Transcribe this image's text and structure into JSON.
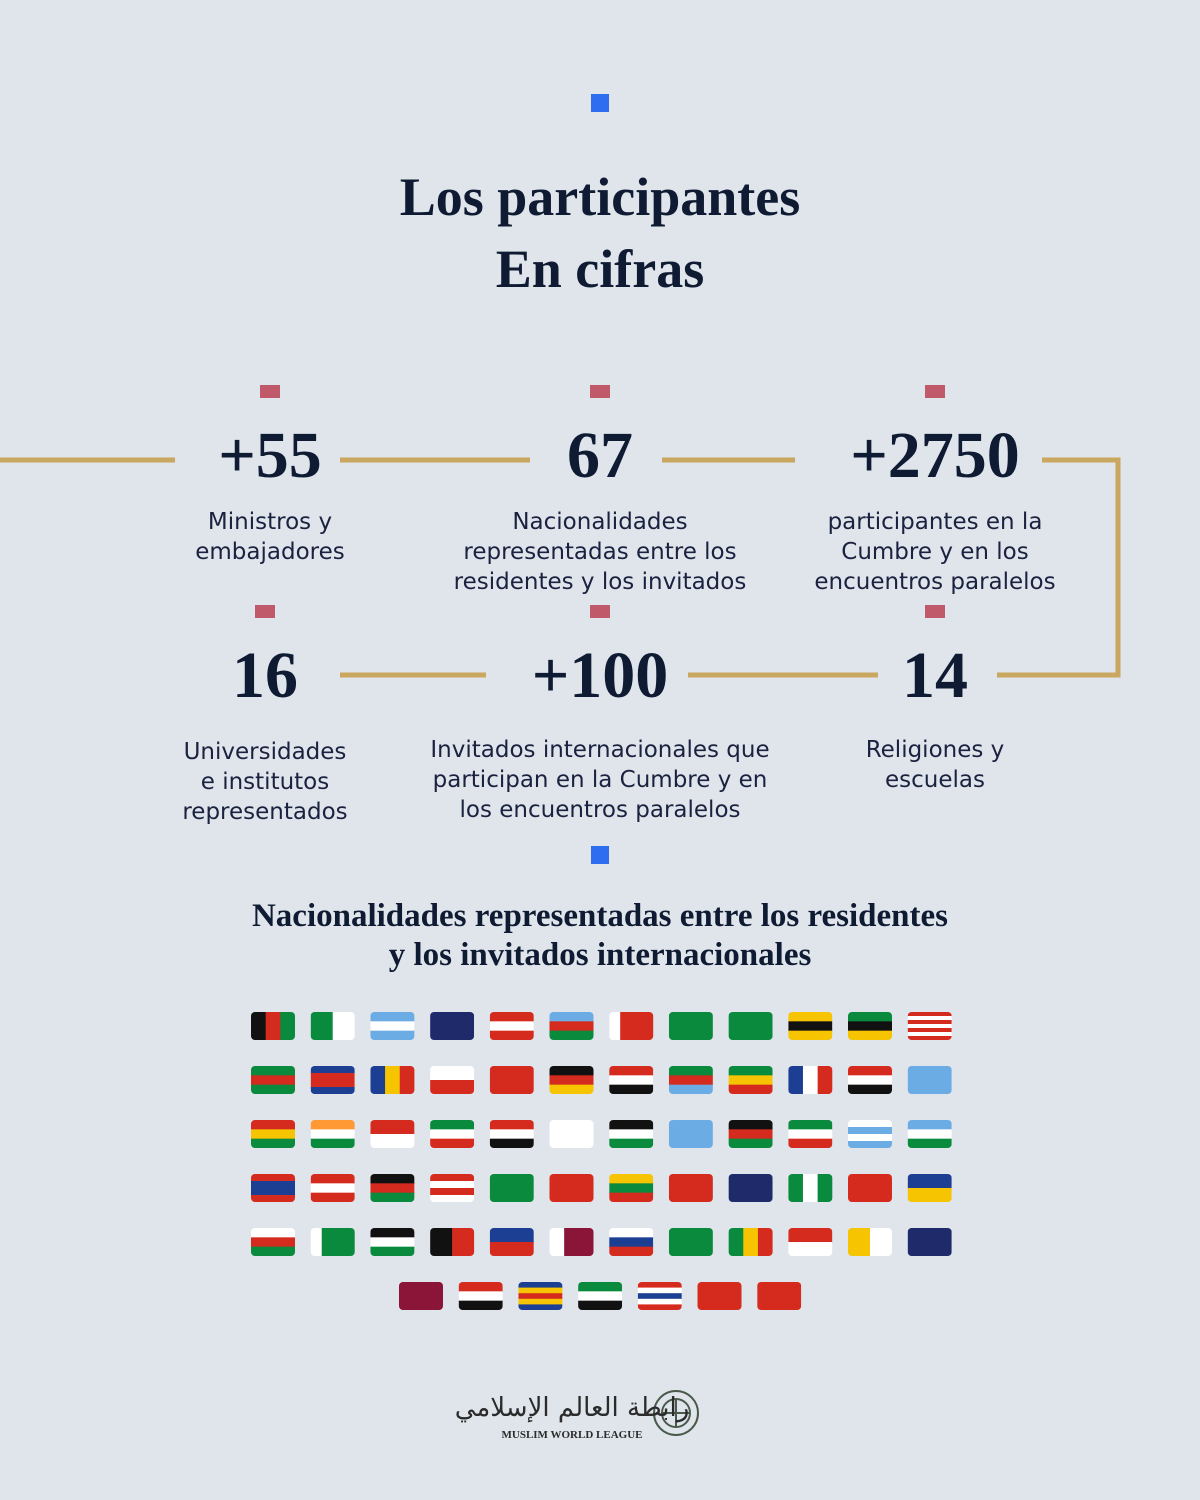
{
  "header": {
    "title": [
      "Los participantes",
      "En cifras"
    ]
  },
  "stats": [
    {
      "number": "+55",
      "description": [
        "Ministros y",
        "embajadores"
      ]
    },
    {
      "number": "67",
      "description": [
        "Nacionalidades",
        "representadas entre los",
        "residentes y los invitados"
      ]
    },
    {
      "number": "+2750",
      "description": [
        "participantes en la",
        "Cumbre y en los",
        "encuentros paralelos"
      ]
    },
    {
      "number": "16",
      "description": [
        "Universidades",
        "e institutos",
        "representados"
      ]
    },
    {
      "number": "+100",
      "description": [
        "Invitados internacionales que",
        "participan en la Cumbre y en",
        "los encuentros paralelos"
      ]
    },
    {
      "number": "14",
      "description": [
        "Religiones y",
        "escuelas"
      ]
    }
  ],
  "nationalities": {
    "title": [
      "Nacionalidades representadas entre los residentes",
      "y los invitados internacionales"
    ]
  },
  "footer": {
    "arabic": "رابطة العالم الإسلامي",
    "name": "MUSLIM WORLD LEAGUE"
  }
}
